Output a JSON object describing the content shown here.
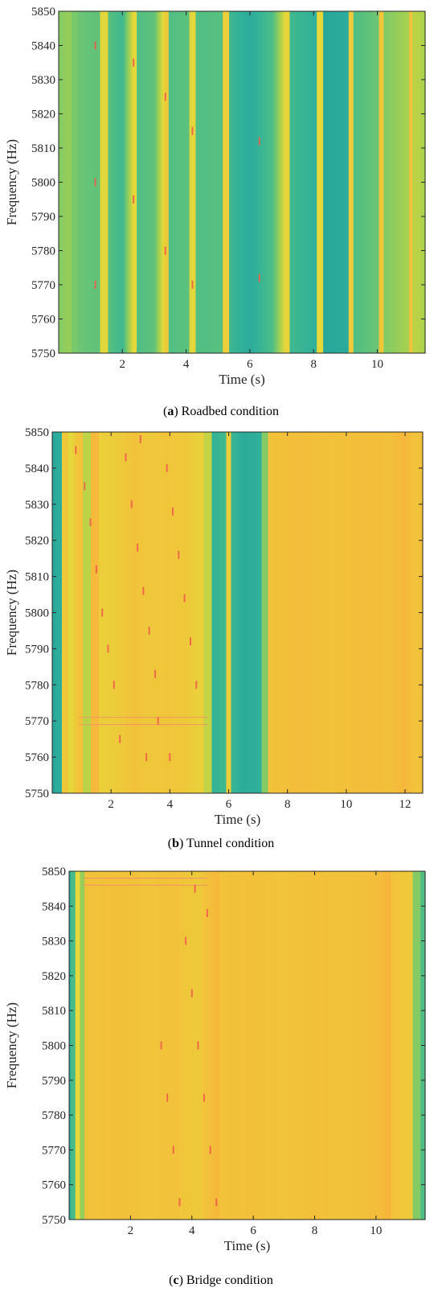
{
  "chart_data": [
    {
      "type": "heatmap",
      "caption_letter": "a",
      "caption_text": "Roadbed condition",
      "xlabel": "Time (s)",
      "ylabel": "Frequency (Hz)",
      "xlim": [
        0,
        11.5
      ],
      "ylim": [
        5750,
        5850
      ],
      "xticks": [
        2,
        4,
        6,
        8,
        10
      ],
      "yticks": [
        5750,
        5760,
        5770,
        5780,
        5790,
        5800,
        5810,
        5820,
        5830,
        5840,
        5850
      ],
      "colormap": [
        "#1f9e9a",
        "#30b09a",
        "#4cbd86",
        "#7cc96a",
        "#b2d24a",
        "#e6d83a",
        "#f2c23a",
        "#f7b53c"
      ],
      "column_levels": [
        [
          0.0,
          0.45
        ],
        [
          0.3,
          0.5
        ],
        [
          0.5,
          0.42
        ],
        [
          0.7,
          0.38
        ],
        [
          0.9,
          0.36
        ],
        [
          1.2,
          0.35
        ],
        [
          1.45,
          0.7
        ],
        [
          1.6,
          0.32
        ],
        [
          2.0,
          0.22
        ],
        [
          2.35,
          0.72
        ],
        [
          2.5,
          0.3
        ],
        [
          3.0,
          0.34
        ],
        [
          3.35,
          0.8
        ],
        [
          3.5,
          0.3
        ],
        [
          4.0,
          0.33
        ],
        [
          4.2,
          0.7
        ],
        [
          4.4,
          0.3
        ],
        [
          5.0,
          0.32
        ],
        [
          5.3,
          0.78
        ],
        [
          5.45,
          0.2
        ],
        [
          6.0,
          0.1
        ],
        [
          6.7,
          0.28
        ],
        [
          7.15,
          0.75
        ],
        [
          7.35,
          0.22
        ],
        [
          8.0,
          0.15
        ],
        [
          8.2,
          0.72
        ],
        [
          8.4,
          0.08
        ],
        [
          9.0,
          0.1
        ],
        [
          9.15,
          0.8
        ],
        [
          9.35,
          0.3
        ],
        [
          10.0,
          0.38
        ],
        [
          10.1,
          0.82
        ],
        [
          10.3,
          0.45
        ],
        [
          11.0,
          0.55
        ],
        [
          11.05,
          0.85
        ],
        [
          11.2,
          0.6
        ],
        [
          11.5,
          0.55
        ]
      ],
      "dashes": [
        [
          1.15,
          5840
        ],
        [
          1.15,
          5800
        ],
        [
          1.15,
          5770
        ],
        [
          2.35,
          5835
        ],
        [
          2.35,
          5795
        ],
        [
          3.35,
          5825
        ],
        [
          3.35,
          5780
        ],
        [
          4.2,
          5815
        ],
        [
          4.2,
          5770
        ],
        [
          6.3,
          5812
        ],
        [
          6.3,
          5772
        ]
      ],
      "hlines": []
    },
    {
      "type": "heatmap",
      "caption_letter": "b",
      "caption_text": "Tunnel condition",
      "xlabel": "Time (s)",
      "ylabel": "Frequency (Hz)",
      "xlim": [
        0,
        12.6
      ],
      "ylim": [
        5750,
        5850
      ],
      "xticks": [
        2,
        4,
        6,
        8,
        10,
        12
      ],
      "yticks": [
        5750,
        5760,
        5770,
        5780,
        5790,
        5800,
        5810,
        5820,
        5830,
        5840,
        5850
      ],
      "colormap": [
        "#1f9e9a",
        "#30b09a",
        "#4cbd86",
        "#7cc96a",
        "#b2d24a",
        "#e6d83a",
        "#f2c23a",
        "#f7b53c"
      ],
      "column_levels": [
        [
          0.0,
          0.08
        ],
        [
          0.25,
          0.12
        ],
        [
          0.45,
          0.82
        ],
        [
          0.6,
          0.7
        ],
        [
          0.9,
          0.86
        ],
        [
          1.2,
          0.6
        ],
        [
          1.45,
          0.95
        ],
        [
          1.7,
          0.78
        ],
        [
          2.2,
          0.8
        ],
        [
          2.8,
          0.86
        ],
        [
          3.3,
          0.82
        ],
        [
          3.9,
          0.84
        ],
        [
          4.5,
          0.82
        ],
        [
          5.0,
          0.76
        ],
        [
          5.25,
          0.62
        ],
        [
          5.55,
          0.18
        ],
        [
          5.85,
          0.22
        ],
        [
          6.0,
          0.78
        ],
        [
          6.15,
          0.2
        ],
        [
          6.5,
          0.1
        ],
        [
          7.0,
          0.14
        ],
        [
          7.25,
          0.45
        ],
        [
          7.4,
          0.86
        ],
        [
          8.5,
          0.9
        ],
        [
          9.5,
          0.86
        ],
        [
          10.5,
          0.9
        ],
        [
          11.5,
          0.88
        ],
        [
          12.0,
          0.98
        ],
        [
          12.3,
          0.85
        ],
        [
          12.6,
          0.88
        ]
      ],
      "dashes": [
        [
          0.8,
          5845
        ],
        [
          1.1,
          5835
        ],
        [
          1.3,
          5825
        ],
        [
          1.5,
          5812
        ],
        [
          1.7,
          5800
        ],
        [
          1.9,
          5790
        ],
        [
          2.1,
          5780
        ],
        [
          2.5,
          5843
        ],
        [
          2.7,
          5830
        ],
        [
          2.9,
          5818
        ],
        [
          3.1,
          5806
        ],
        [
          3.3,
          5795
        ],
        [
          3.5,
          5783
        ],
        [
          3.6,
          5770
        ],
        [
          3.9,
          5840
        ],
        [
          4.1,
          5828
        ],
        [
          4.3,
          5816
        ],
        [
          4.5,
          5804
        ],
        [
          4.7,
          5792
        ],
        [
          4.9,
          5780
        ],
        [
          3.0,
          5848
        ],
        [
          3.2,
          5760
        ],
        [
          2.3,
          5765
        ],
        [
          4.0,
          5760
        ]
      ],
      "hlines": [
        [
          0.9,
          5.3,
          5771
        ],
        [
          0.9,
          5.3,
          5769
        ]
      ]
    },
    {
      "type": "heatmap",
      "caption_letter": "c",
      "caption_text": "Bridge condition",
      "xlabel": "Time (s)",
      "ylabel": "Frequency (Hz)",
      "xlim": [
        0,
        11.6
      ],
      "ylim": [
        5750,
        5850
      ],
      "xticks": [
        2,
        4,
        6,
        8,
        10
      ],
      "yticks": [
        5750,
        5760,
        5770,
        5780,
        5790,
        5800,
        5810,
        5820,
        5830,
        5840,
        5850
      ],
      "colormap": [
        "#1f9e9a",
        "#30b09a",
        "#4cbd86",
        "#7cc96a",
        "#b2d24a",
        "#e6d83a",
        "#f2c23a",
        "#f7b53c"
      ],
      "column_levels": [
        [
          0.0,
          0.1
        ],
        [
          0.15,
          0.25
        ],
        [
          0.3,
          0.72
        ],
        [
          0.45,
          0.5
        ],
        [
          0.55,
          0.85
        ],
        [
          1.5,
          0.88
        ],
        [
          2.5,
          0.84
        ],
        [
          3.5,
          0.86
        ],
        [
          4.2,
          0.8
        ],
        [
          4.8,
          0.95
        ],
        [
          5.0,
          0.86
        ],
        [
          6.0,
          0.88
        ],
        [
          7.0,
          0.84
        ],
        [
          8.0,
          0.88
        ],
        [
          9.0,
          0.85
        ],
        [
          10.0,
          0.9
        ],
        [
          10.4,
          0.98
        ],
        [
          10.6,
          0.86
        ],
        [
          11.1,
          0.8
        ],
        [
          11.3,
          0.45
        ],
        [
          11.6,
          0.3
        ]
      ],
      "dashes": [
        [
          3.0,
          5800
        ],
        [
          3.2,
          5785
        ],
        [
          3.4,
          5770
        ],
        [
          3.6,
          5755
        ],
        [
          3.8,
          5830
        ],
        [
          4.0,
          5815
        ],
        [
          4.2,
          5800
        ],
        [
          4.4,
          5785
        ],
        [
          4.6,
          5770
        ],
        [
          4.8,
          5755
        ],
        [
          4.1,
          5845
        ],
        [
          4.5,
          5838
        ]
      ],
      "hlines": [
        [
          0.45,
          4.5,
          5848
        ],
        [
          0.45,
          4.5,
          5846
        ]
      ]
    }
  ]
}
